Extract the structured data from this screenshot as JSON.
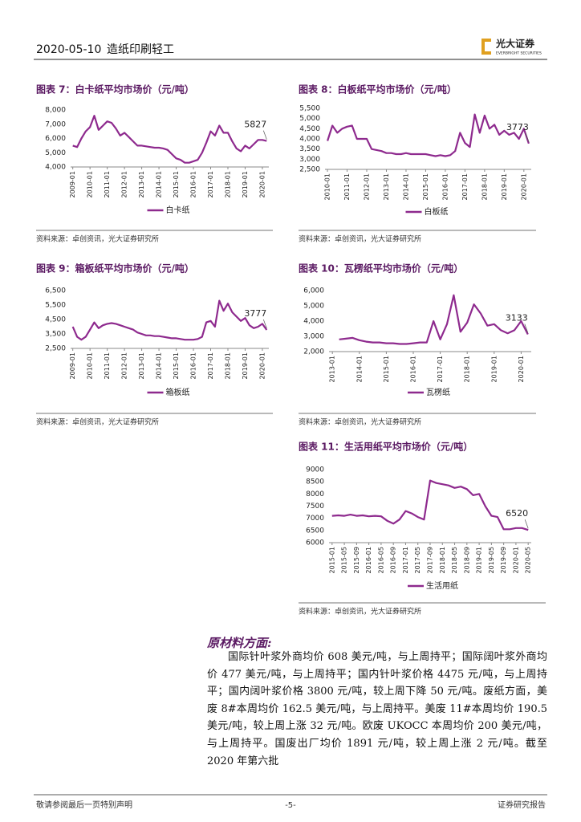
{
  "header": {
    "date": "2020-05-10",
    "sector": "造纸印刷轻工",
    "brand": "光大证券",
    "brand_en": "EVERBRIGHT SECURITIES"
  },
  "chart_data": [
    {
      "type": "line",
      "title": "图表 7：白卡纸平均市场价（元/吨）",
      "source": "资料来源：卓创资讯，光大证券研究所",
      "categories": [
        "2009-01",
        null,
        null,
        null,
        "2010-01",
        null,
        null,
        null,
        "2011-01",
        null,
        null,
        null,
        "2012-01",
        null,
        null,
        null,
        "2013-01",
        null,
        null,
        null,
        "2014-01",
        null,
        null,
        null,
        "2015-01",
        null,
        null,
        null,
        "2016-01",
        null,
        null,
        null,
        "2017-01",
        null,
        null,
        null,
        "2018-01",
        null,
        null,
        null,
        "2019-01",
        null,
        null,
        null,
        "2020-01",
        null
      ],
      "series": [
        {
          "name": "白卡纸",
          "color": "#8e2a8e",
          "values": [
            5500,
            5400,
            6000,
            6500,
            6800,
            7600,
            6600,
            6900,
            7200,
            7100,
            6700,
            6200,
            6400,
            6100,
            5800,
            5500,
            5500,
            5450,
            5400,
            5350,
            5350,
            5300,
            5200,
            4900,
            4600,
            4500,
            4300,
            4300,
            4400,
            4500,
            5000,
            5700,
            6500,
            6200,
            6900,
            6400,
            6400,
            5800,
            5300,
            5100,
            5500,
            5300,
            5600,
            5900,
            5900,
            5827
          ]
        }
      ],
      "ylim": [
        4000,
        8000
      ],
      "yticks": [
        {
          "value": 4000,
          "label": "4,000"
        },
        {
          "value": 5000,
          "label": "5,000"
        },
        {
          "value": 6000,
          "label": "6,000"
        },
        {
          "value": 7000,
          "label": "7,000"
        },
        {
          "value": 8000,
          "label": "8,000"
        }
      ],
      "annotation": "5827",
      "grid": false,
      "legend": "bottom"
    },
    {
      "type": "line",
      "title": "图表 8：白板纸平均市场价（元/吨）",
      "source": "资料来源：卓创资讯，光大证券研究所",
      "categories": [
        "2010-01",
        null,
        null,
        null,
        "2011-01",
        null,
        null,
        null,
        "2012-01",
        null,
        null,
        null,
        "2013-01",
        null,
        null,
        null,
        "2014-01",
        null,
        null,
        null,
        "2015-01",
        null,
        null,
        null,
        "2016-01",
        null,
        null,
        null,
        "2017-01",
        null,
        null,
        null,
        "2018-01",
        null,
        null,
        null,
        "2019-01",
        null,
        null,
        null,
        "2020-01",
        null
      ],
      "series": [
        {
          "name": "白板纸",
          "color": "#8e2a8e",
          "values": [
            3900,
            4650,
            4300,
            4500,
            4600,
            4650,
            4000,
            4000,
            4000,
            3500,
            3450,
            3400,
            3300,
            3300,
            3250,
            3250,
            3300,
            3250,
            3250,
            3250,
            3250,
            3200,
            3150,
            3200,
            3150,
            3200,
            3400,
            4300,
            3800,
            3600,
            5200,
            4300,
            5150,
            4500,
            4700,
            4200,
            4400,
            4200,
            4300,
            4000,
            4500,
            3773
          ]
        }
      ],
      "ylim": [
        2500,
        5500
      ],
      "yticks": [
        {
          "value": 2500,
          "label": "2,500"
        },
        {
          "value": 3000,
          "label": "3,000"
        },
        {
          "value": 3500,
          "label": "3,500"
        },
        {
          "value": 4000,
          "label": "4,000"
        },
        {
          "value": 4500,
          "label": "4,500"
        },
        {
          "value": 5000,
          "label": "5,000"
        },
        {
          "value": 5500,
          "label": "5,500"
        }
      ],
      "annotation": "3773",
      "grid": false,
      "legend": "bottom"
    },
    {
      "type": "line",
      "title": "图表 9：箱板纸平均市场价（元/吨）",
      "source": "资料来源：卓创资讯，光大证券研究所",
      "categories": [
        "2009-01",
        null,
        null,
        null,
        "2010-01",
        null,
        null,
        null,
        "2011-01",
        null,
        null,
        null,
        "2012-01",
        null,
        null,
        null,
        "2013-01",
        null,
        null,
        null,
        "2014-01",
        null,
        null,
        null,
        "2015-01",
        null,
        null,
        null,
        "2016-01",
        null,
        null,
        null,
        "2017-01",
        null,
        null,
        null,
        "2018-01",
        null,
        null,
        null,
        "2019-01",
        null,
        null,
        null,
        "2020-01",
        null
      ],
      "series": [
        {
          "name": "箱板纸",
          "color": "#8e2a8e",
          "values": [
            4000,
            3300,
            3100,
            3300,
            3800,
            4300,
            3900,
            4100,
            4200,
            4250,
            4200,
            4100,
            4000,
            3900,
            3800,
            3600,
            3500,
            3400,
            3400,
            3350,
            3350,
            3300,
            3250,
            3200,
            3200,
            3150,
            3100,
            3100,
            3100,
            3150,
            3300,
            4300,
            4400,
            4000,
            5800,
            5100,
            5600,
            5000,
            4700,
            4400,
            4600,
            4100,
            3900,
            4000,
            4200,
            3777
          ]
        }
      ],
      "ylim": [
        2500,
        6500
      ],
      "yticks": [
        {
          "value": 2500,
          "label": "2,500"
        },
        {
          "value": 3500,
          "label": "3,500"
        },
        {
          "value": 4500,
          "label": "4,500"
        },
        {
          "value": 5500,
          "label": "5,500"
        },
        {
          "value": 6500,
          "label": "6,500"
        }
      ],
      "annotation": "3777",
      "grid": false,
      "legend": "bottom"
    },
    {
      "type": "line",
      "title": "图表 10：瓦楞纸平均市场价（元/吨）",
      "source": "资料来源：卓创资讯，光大证券研究所",
      "categories": [
        "2013-01",
        null,
        null,
        null,
        "2014-01",
        null,
        null,
        null,
        "2015-01",
        null,
        null,
        null,
        "2016-01",
        null,
        null,
        null,
        "2017-01",
        null,
        null,
        null,
        "2018-01",
        null,
        null,
        null,
        "2019-01",
        null,
        null,
        null,
        "2020-01",
        null
      ],
      "series": [
        {
          "name": "瓦楞纸",
          "color": "#8e2a8e",
          "values": [
            null,
            2800,
            2850,
            2900,
            2750,
            2650,
            2600,
            2600,
            2550,
            2550,
            2500,
            2500,
            2550,
            2600,
            2600,
            4000,
            2800,
            3800,
            5700,
            3300,
            3900,
            5100,
            4500,
            3700,
            3800,
            3400,
            3200,
            3400,
            4000,
            3133
          ]
        }
      ],
      "ylim": [
        2000,
        6000
      ],
      "yticks": [
        {
          "value": 2000,
          "label": "2,000"
        },
        {
          "value": 3000,
          "label": "3,000"
        },
        {
          "value": 4000,
          "label": "4,000"
        },
        {
          "value": 5000,
          "label": "5,000"
        },
        {
          "value": 6000,
          "label": "6,000"
        }
      ],
      "annotation": "3133",
      "grid": false,
      "legend": "bottom"
    },
    {
      "type": "line",
      "title": "图表 11：生活用纸平均市场价（元/吨）",
      "source": "资料来源：卓创资讯，光大证券研究所",
      "categories": [
        "2015-01",
        null,
        "2015-05",
        null,
        "2015-09",
        null,
        "2016-01",
        null,
        "2016-05",
        null,
        "2016-09",
        null,
        "2017-01",
        null,
        "2017-05",
        null,
        "2017-09",
        null,
        "2018-01",
        null,
        "2018-05",
        null,
        "2018-09",
        null,
        "2019-01",
        null,
        "2019-05",
        null,
        "2019-09",
        null,
        "2020-01",
        null,
        "2020-05"
      ],
      "series": [
        {
          "name": "生活用纸",
          "color": "#8e2a8e",
          "values": [
            7100,
            7120,
            7100,
            7150,
            7100,
            7120,
            7080,
            7100,
            7080,
            6900,
            6780,
            6950,
            7300,
            7200,
            7050,
            6950,
            8550,
            8450,
            8400,
            8350,
            8250,
            8300,
            8200,
            7950,
            8000,
            7500,
            7100,
            7050,
            6550,
            6550,
            6600,
            6600,
            6520
          ]
        }
      ],
      "ylim": [
        6000,
        9000
      ],
      "yticks": [
        6000,
        6500,
        7000,
        7500,
        8000,
        8500,
        9000
      ],
      "annotation": "6520",
      "grid": false,
      "legend": "bottom"
    }
  ],
  "section": {
    "heading": "原材料方面:",
    "body": "国际针叶浆外商均价 608 美元/吨，与上周持平；国际阔叶浆外商均价 477 美元/吨，与上周持平；国内针叶浆价格 4475 元/吨，与上周持平；国内阔叶浆价格 3800 元/吨，较上周下降 50 元/吨。废纸方面，美废 8#本周均价 162.5 美元/吨，与上周持平。美废 11#本周均价 190.5 美元/吨，较上周上涨 32 元/吨。欧废 UKOCC 本周均价 200 美元/吨，与上周持平。国废出厂均价 1891 元/吨，较上周上涨 2 元/吨。截至 2020 年第六批"
  },
  "footer": {
    "left": "敬请参阅最后一页特别声明",
    "page": "-5-",
    "right": "证券研究报告"
  }
}
